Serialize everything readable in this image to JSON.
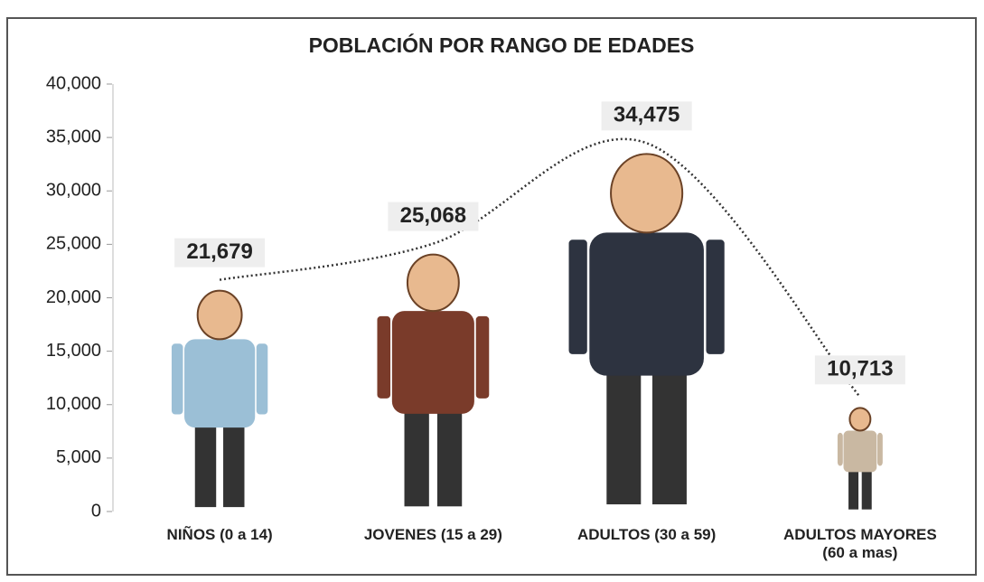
{
  "chart_data": {
    "type": "pictograph",
    "title": "POBLACIÓN POR RANGO DE EDADES",
    "categories": [
      "NIÑOS (0 a 14)",
      "JOVENES (15 a 29)",
      "ADULTOS (30 a 59)",
      "ADULTOS MAYORES\n(60 a mas)"
    ],
    "values": [
      21679,
      25068,
      34475,
      10713
    ],
    "value_labels": [
      "21,679",
      "25,068",
      "34,475",
      "10,713"
    ],
    "colors": [
      "#9bbfd6",
      "#7a3b2a",
      "#2d3340",
      "#c9b8a2"
    ],
    "ylim": [
      0,
      40000
    ],
    "yticks": [
      0,
      {
        "value": 5000,
        "label": "5,000"
      },
      {
        "value": 10000,
        "label": "10,000"
      },
      {
        "value": 15000,
        "label": "15,000"
      },
      {
        "value": 20000,
        "label": "20,000"
      },
      {
        "value": 25000,
        "label": "25,000"
      },
      {
        "value": 30000,
        "label": "30,000"
      },
      {
        "value": 35000,
        "label": "35,000"
      },
      {
        "value": 40000,
        "label": "40,000"
      }
    ],
    "grid": false
  }
}
